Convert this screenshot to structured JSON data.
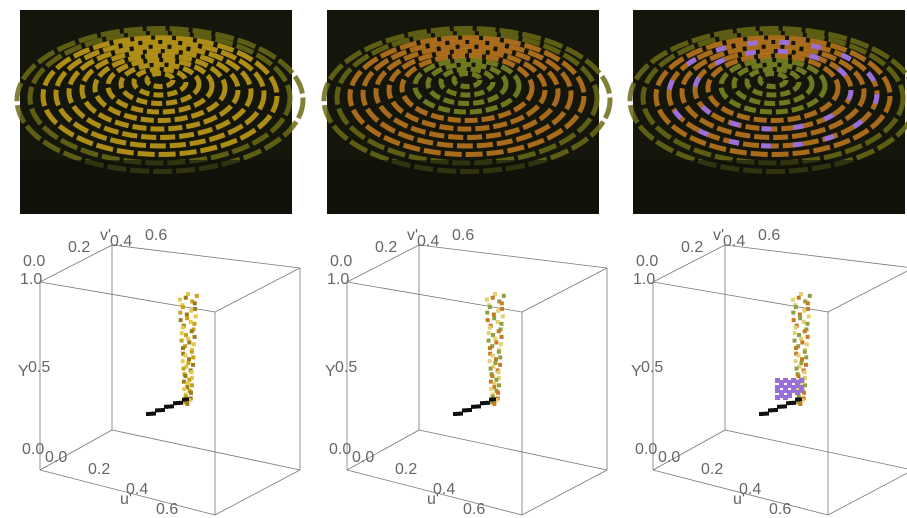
{
  "panels": [
    {
      "v_axis": {
        "label": "v'",
        "ticks": [
          "0.0",
          "0.2",
          "0.4",
          "0.6"
        ]
      },
      "y_axis": {
        "label": "Y",
        "ticks": [
          "1.0",
          "0.5",
          "0.0"
        ]
      },
      "u_axis": {
        "label": "u'",
        "ticks": [
          "0.0",
          "0.2",
          "0.4",
          "0.6"
        ]
      }
    },
    {
      "v_axis": {
        "label": "v'",
        "ticks": [
          "0.0",
          "0.2",
          "0.4",
          "0.6"
        ]
      },
      "y_axis": {
        "label": "Y",
        "ticks": [
          "1.0",
          "0.5",
          "0.0"
        ]
      },
      "u_axis": {
        "label": "u'",
        "ticks": [
          "0.0",
          "0.2",
          "0.4",
          "0.6"
        ]
      }
    },
    {
      "v_axis": {
        "label": "v'",
        "ticks": [
          "0.0",
          "0.2",
          "0.4",
          "0.6"
        ]
      },
      "y_axis": {
        "label": "Y",
        "ticks": [
          "1.0",
          "0.5",
          "0.0"
        ]
      },
      "u_axis": {
        "label": "u'",
        "ticks": [
          "0.0",
          "0.2",
          "0.4",
          "0.6"
        ]
      }
    }
  ]
}
